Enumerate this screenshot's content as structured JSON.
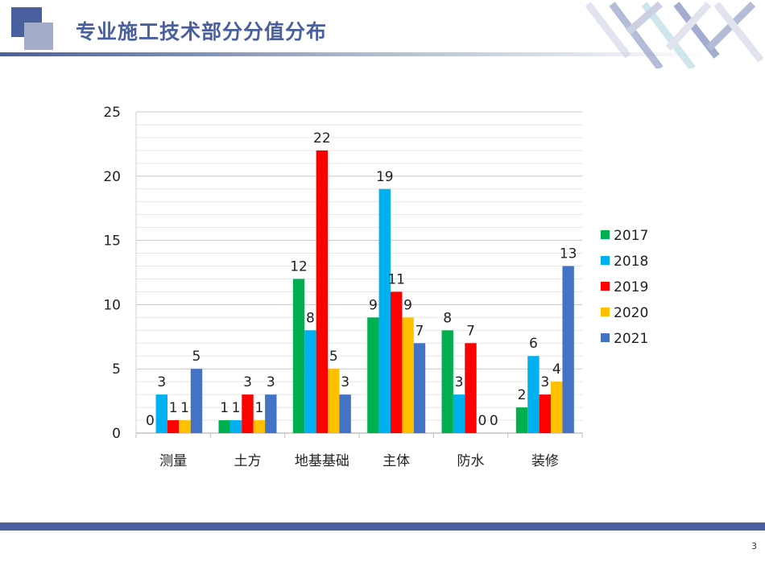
{
  "slide": {
    "title": "专业施工技术部分分值分布",
    "page_number": "3"
  },
  "chart_data": {
    "type": "bar",
    "categories": [
      "测量",
      "土方",
      "地基基础",
      "主体",
      "防水",
      "装修"
    ],
    "series": [
      {
        "name": "2017",
        "color": "#00b050",
        "values": [
          0,
          1,
          12,
          9,
          8,
          2
        ]
      },
      {
        "name": "2018",
        "color": "#00b0f0",
        "values": [
          3,
          1,
          8,
          19,
          3,
          6
        ]
      },
      {
        "name": "2019",
        "color": "#ff0000",
        "values": [
          1,
          3,
          22,
          11,
          7,
          3
        ]
      },
      {
        "name": "2020",
        "color": "#ffc000",
        "values": [
          1,
          1,
          5,
          9,
          0,
          4
        ]
      },
      {
        "name": "2021",
        "color": "#4472c4",
        "values": [
          5,
          3,
          3,
          7,
          0,
          13
        ]
      }
    ],
    "ylim": [
      0,
      25
    ],
    "yticks": [
      0,
      5,
      10,
      15,
      20,
      25
    ],
    "grid": true,
    "legend": "right",
    "data_labels": true
  }
}
